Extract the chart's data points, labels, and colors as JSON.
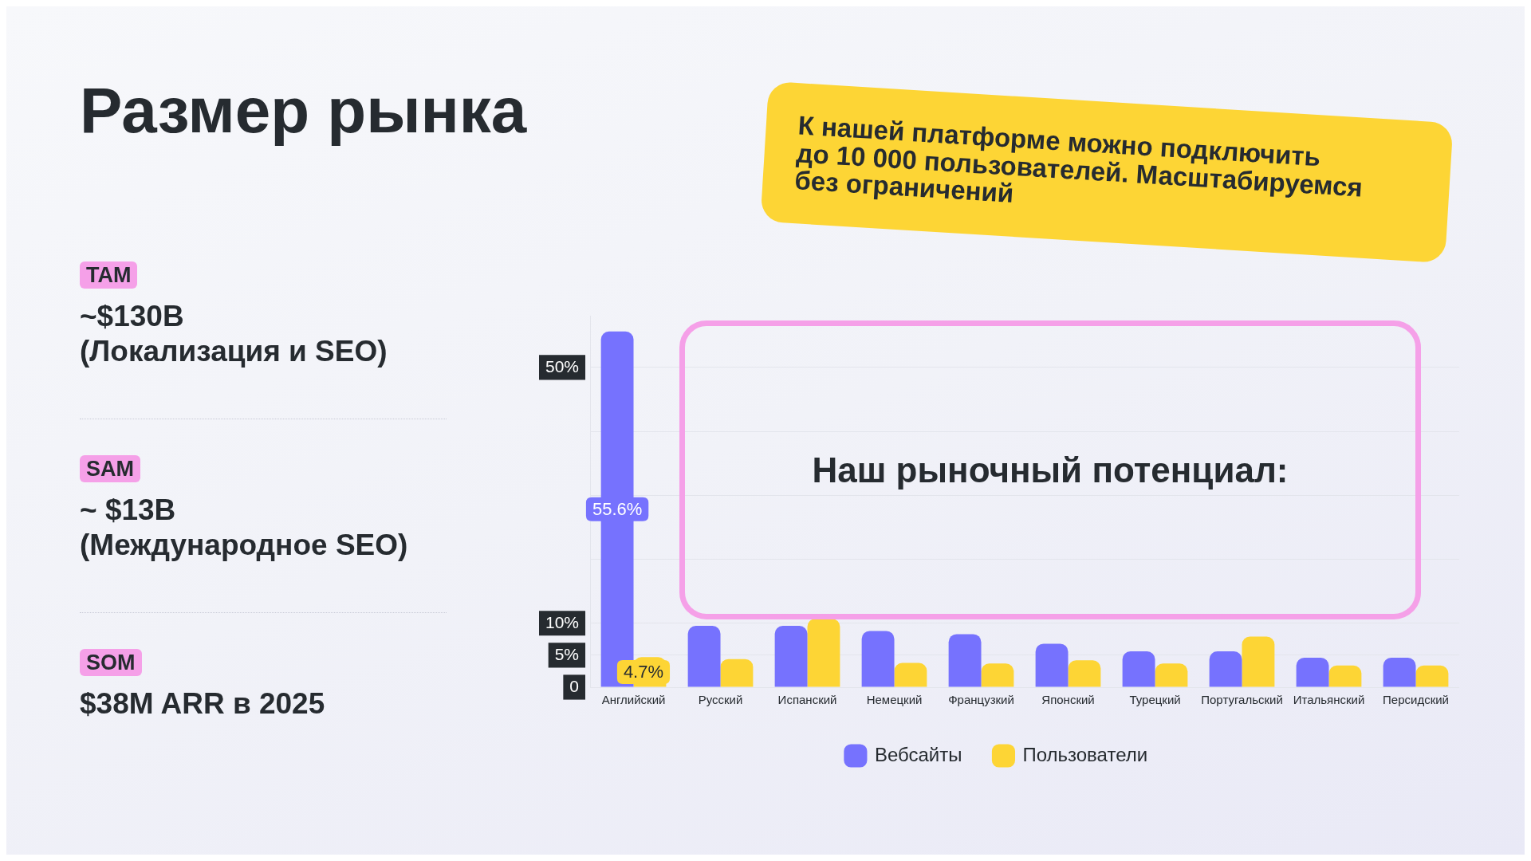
{
  "chart_data": {
    "type": "bar",
    "title": "Размер рынка",
    "categories": [
      "Английский",
      "Русский",
      "Испанский",
      "Немецкий",
      "Французкий",
      "Японский",
      "Турецкий",
      "Португальский",
      "Итальянский",
      "Персидский"
    ],
    "series": [
      {
        "name": "Вебсайты",
        "color": "#7672fe",
        "values": [
          55.6,
          9.6,
          9.6,
          8.8,
          8.3,
          6.8,
          5.6,
          5.6,
          4.6,
          4.6
        ],
        "value_labels": [
          "55.6%",
          null,
          null,
          null,
          null,
          null,
          null,
          null,
          null,
          null
        ]
      },
      {
        "name": "Пользователи",
        "color": "#fdd535",
        "values": [
          4.7,
          4.4,
          10.7,
          3.8,
          3.7,
          4.2,
          3.7,
          7.9,
          3.4,
          3.4
        ],
        "value_labels": [
          "4.7%",
          null,
          null,
          null,
          null,
          null,
          null,
          null,
          null,
          null
        ]
      }
    ],
    "ylim": [
      0,
      58
    ],
    "yticks": [
      {
        "value": 0,
        "label": "0"
      },
      {
        "value": 5,
        "label": "5%"
      },
      {
        "value": 10,
        "label": "10%"
      },
      {
        "value": 20,
        "label": null
      },
      {
        "value": 30,
        "label": null
      },
      {
        "value": 40,
        "label": null
      },
      {
        "value": 50,
        "label": "50%"
      }
    ],
    "grid": "y",
    "legend": "bottom",
    "annotations": [
      "К нашей платформе можно подключить\nдо 10 000 пользователей. Масштабируемся\nбез ограничений",
      "Наш рыночный потенциал:",
      "TAM",
      "~$130B\n(Локализация и SEO)",
      "SAM",
      "~ $13B\n(Международное SEO)",
      "SOM",
      "$38M ARR в 2025"
    ]
  }
}
